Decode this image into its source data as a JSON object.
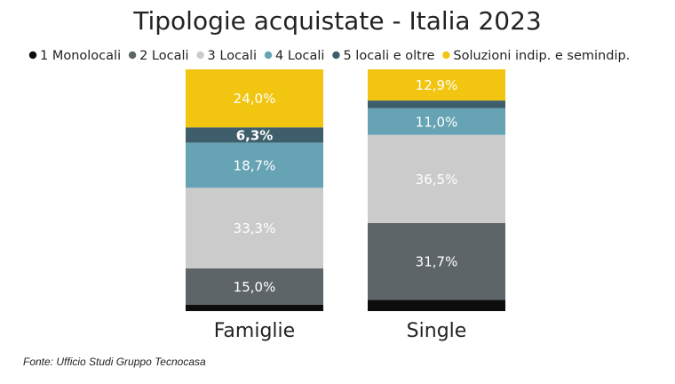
{
  "chart_data": {
    "type": "bar",
    "stacked": true,
    "title": "Tipologie acquistate - Italia 2023",
    "categories": [
      "Famiglie",
      "Single"
    ],
    "series": [
      {
        "name": "1 Monolocali",
        "color": "#0d0d0d",
        "values": [
          2.7,
          4.7
        ],
        "labels": [
          "",
          ""
        ]
      },
      {
        "name": "2 Locali",
        "color": "#5d6569",
        "values": [
          15.0,
          31.7
        ],
        "labels": [
          "15,0%",
          "31,7%"
        ]
      },
      {
        "name": "3 Locali",
        "color": "#cbcbcb",
        "values": [
          33.3,
          36.5
        ],
        "labels": [
          "33,3%",
          "36,5%"
        ]
      },
      {
        "name": "4 Locali",
        "color": "#66a3b4",
        "values": [
          18.7,
          11.0
        ],
        "labels": [
          "18,7%",
          "11,0%"
        ]
      },
      {
        "name": "5 locali e oltre",
        "color": "#3f5e6b",
        "values": [
          6.3,
          3.2
        ],
        "labels": [
          "6,3%",
          ""
        ]
      },
      {
        "name": "Soluzioni indip. e semindip.",
        "color": "#f2c511",
        "values": [
          24.0,
          12.9
        ],
        "labels": [
          "24,0%",
          "12,9%"
        ]
      }
    ],
    "ylim": [
      0,
      100
    ],
    "grid": false,
    "legend_position": "top"
  },
  "source": "Fonte: Ufficio Studi Gruppo Tecnocasa"
}
